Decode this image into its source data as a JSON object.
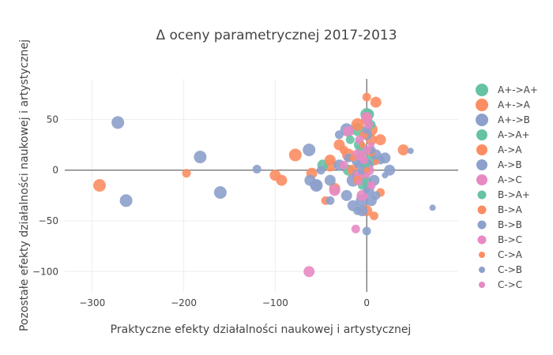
{
  "chart_data": {
    "type": "scatter",
    "title": "Δ oceny parametrycznej 2017-2013",
    "xlabel": "Praktyczne efekty działalności naukowej i artystycznej",
    "ylabel": "Pozostałe efekty działalności naukowej i artystycznej",
    "xlim": [
      -330,
      100
    ],
    "ylim": [
      -120,
      90
    ],
    "xticks": [
      -300,
      -200,
      -100,
      0
    ],
    "yticks": [
      -100,
      -50,
      0,
      50
    ],
    "xtick_labels": [
      "−300",
      "−200",
      "−100",
      "0"
    ],
    "ytick_labels": [
      "−100",
      "−50",
      "0",
      "50"
    ],
    "grid": true,
    "legend_position": "right",
    "series": [
      {
        "name": "A+->A+",
        "color": "#66c2a5",
        "size": 14,
        "points": [
          [
            -10,
            40
          ],
          [
            0,
            55
          ],
          [
            -5,
            20
          ],
          [
            5,
            10
          ]
        ]
      },
      {
        "name": "A+->A",
        "color": "#fc8d62",
        "size": 14,
        "points": [
          [
            -292,
            -15
          ],
          [
            -78,
            15
          ],
          [
            -40,
            5
          ],
          [
            -10,
            45
          ],
          [
            5,
            40
          ],
          [
            -5,
            -5
          ],
          [
            -20,
            15
          ]
        ]
      },
      {
        "name": "A+->B",
        "color": "#8da0cb",
        "size": 14,
        "points": [
          [
            -272,
            47
          ],
          [
            -263,
            -30
          ],
          [
            -182,
            13
          ],
          [
            -160,
            -22
          ],
          [
            -63,
            20
          ],
          [
            -55,
            -15
          ],
          [
            -22,
            40
          ],
          [
            -10,
            10
          ],
          [
            -5,
            -30
          ],
          [
            0,
            5
          ],
          [
            -15,
            -10
          ]
        ]
      },
      {
        "name": "A->A+",
        "color": "#66c2a5",
        "size": 12,
        "points": [
          [
            -48,
            5
          ],
          [
            -20,
            0
          ],
          [
            -8,
            25
          ],
          [
            2,
            55
          ],
          [
            0,
            -12
          ]
        ]
      },
      {
        "name": "A->A",
        "color": "#fc8d62",
        "size": 12,
        "points": [
          [
            -100,
            -5
          ],
          [
            -93,
            -10
          ],
          [
            -60,
            -3
          ],
          [
            -40,
            10
          ],
          [
            -30,
            25
          ],
          [
            -15,
            0
          ],
          [
            0,
            50
          ],
          [
            5,
            30
          ],
          [
            10,
            67
          ],
          [
            15,
            30
          ],
          [
            40,
            20
          ],
          [
            0,
            -40
          ],
          [
            -35,
            -18
          ]
        ]
      },
      {
        "name": "A->B",
        "color": "#8da0cb",
        "size": 12,
        "points": [
          [
            -62,
            -10
          ],
          [
            -55,
            -15
          ],
          [
            -40,
            -10
          ],
          [
            -30,
            5
          ],
          [
            -22,
            -25
          ],
          [
            -15,
            -35
          ],
          [
            -10,
            -5
          ],
          [
            -5,
            10
          ],
          [
            0,
            35
          ],
          [
            2,
            -20
          ],
          [
            8,
            -10
          ],
          [
            10,
            15
          ],
          [
            20,
            12
          ],
          [
            25,
            0
          ],
          [
            -5,
            -40
          ],
          [
            5,
            -30
          ]
        ]
      },
      {
        "name": "A->C",
        "color": "#e78ac3",
        "size": 12,
        "points": [
          [
            -63,
            -100
          ],
          [
            -35,
            -20
          ],
          [
            -20,
            38
          ],
          [
            -10,
            15
          ],
          [
            -5,
            -25
          ],
          [
            0,
            52
          ],
          [
            2,
            0
          ],
          [
            -8,
            -5
          ]
        ]
      },
      {
        "name": "B->A+",
        "color": "#66c2a5",
        "size": 9,
        "points": [
          [
            -18,
            30
          ],
          [
            -5,
            -15
          ],
          [
            5,
            45
          ],
          [
            -2,
            5
          ]
        ]
      },
      {
        "name": "B->A",
        "color": "#fc8d62",
        "size": 9,
        "points": [
          [
            -197,
            -3
          ],
          [
            -45,
            -30
          ],
          [
            -25,
            20
          ],
          [
            -10,
            -10
          ],
          [
            0,
            72
          ],
          [
            8,
            -45
          ],
          [
            15,
            -22
          ],
          [
            5,
            18
          ],
          [
            -3,
            35
          ]
        ]
      },
      {
        "name": "B->B",
        "color": "#8da0cb",
        "size": 9,
        "points": [
          [
            -120,
            1
          ],
          [
            -50,
            0
          ],
          [
            -40,
            -30
          ],
          [
            -30,
            35
          ],
          [
            -20,
            12
          ],
          [
            -10,
            -40
          ],
          [
            0,
            -60
          ],
          [
            5,
            20
          ],
          [
            15,
            10
          ],
          [
            10,
            -25
          ],
          [
            0,
            40
          ],
          [
            -5,
            0
          ]
        ]
      },
      {
        "name": "B->C",
        "color": "#e78ac3",
        "size": 9,
        "points": [
          [
            -12,
            -58
          ],
          [
            -25,
            5
          ],
          [
            -8,
            30
          ],
          [
            0,
            20
          ],
          [
            5,
            -15
          ],
          [
            -3,
            10
          ],
          [
            2,
            45
          ]
        ]
      },
      {
        "name": "C->A",
        "color": "#fc8d62",
        "size": 6,
        "points": [
          [
            -15,
            12
          ],
          [
            0,
            0
          ],
          [
            10,
            8
          ],
          [
            -5,
            25
          ]
        ]
      },
      {
        "name": "C->B",
        "color": "#8da0cb",
        "size": 6,
        "points": [
          [
            48,
            19
          ],
          [
            72,
            -37
          ],
          [
            -10,
            5
          ],
          [
            0,
            -20
          ],
          [
            20,
            -5
          ]
        ]
      },
      {
        "name": "C->C",
        "color": "#e78ac3",
        "size": 6,
        "points": [
          [
            -5,
            15
          ],
          [
            0,
            -5
          ],
          [
            5,
            25
          ],
          [
            -8,
            -12
          ]
        ]
      }
    ]
  }
}
